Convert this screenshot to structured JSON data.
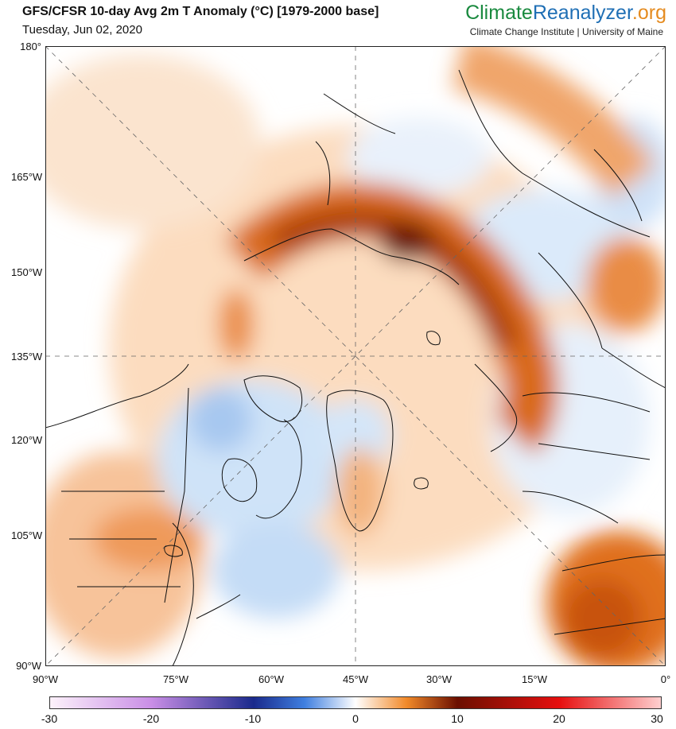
{
  "header": {
    "title": "GFS/CFSR 10-day Avg 2m T Anomaly (°C) [1979-2000 base]",
    "date": "Tuesday, Jun 02, 2020",
    "brand_part1": "Climate",
    "brand_part2": "Reanalyzer",
    "brand_part3": ".org",
    "affiliation": "Climate Change Institute | University of Maine"
  },
  "map": {
    "y_labels": [
      "180°",
      "165°W",
      "150°W",
      "135°W",
      "120°W",
      "105°W",
      "90°W"
    ],
    "x_labels": [
      "90°W",
      "75°W",
      "60°W",
      "45°W",
      "30°W",
      "15°W",
      "0°"
    ]
  },
  "colorbar": {
    "ticks": [
      "-30",
      "-20",
      "-10",
      "0",
      "10",
      "20",
      "30"
    ],
    "range": [
      -30,
      30
    ],
    "colors": {
      "neg30": "#fdf2fb",
      "neg20": "#c98ee6",
      "neg10": "#1a2a8c",
      "neg5": "#3f7fe0",
      "zero": "#ffffff",
      "pos5": "#f28a2a",
      "pos10": "#6b0f00",
      "pos20": "#e60f0f",
      "pos30": "#ffd0d0"
    }
  }
}
